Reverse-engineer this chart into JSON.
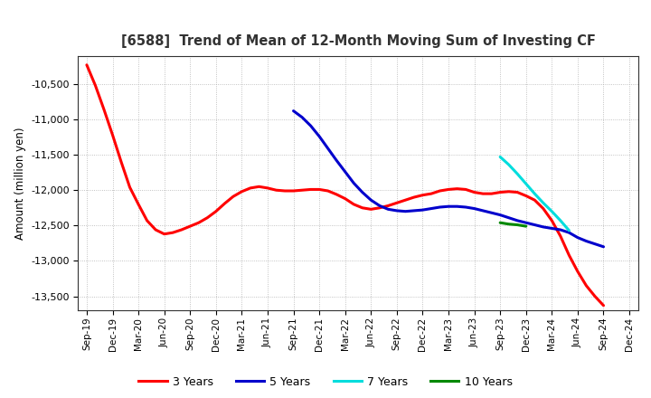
{
  "title": "[6588]  Trend of Mean of 12-Month Moving Sum of Investing CF",
  "ylabel": "Amount (million yen)",
  "background_color": "#ffffff",
  "grid_color": "#aaaaaa",
  "ylim": [
    -13700,
    -10100
  ],
  "yticks": [
    -10500,
    -11000,
    -11500,
    -12000,
    -12500,
    -13000,
    -13500
  ],
  "series": {
    "3 Years": {
      "color": "#ff0000",
      "x": [
        0,
        1,
        2,
        3,
        4,
        5,
        6,
        7,
        8,
        9,
        10,
        11,
        12,
        13,
        14,
        15,
        16,
        17,
        18,
        19,
        20,
        21,
        22,
        23,
        24,
        25,
        26,
        27,
        28,
        29,
        30,
        31,
        32,
        33,
        34,
        35,
        36,
        37,
        38,
        39,
        40,
        41,
        42,
        43,
        44,
        45,
        46,
        47,
        48,
        49,
        50,
        51,
        52,
        53,
        54,
        55,
        56,
        57,
        58,
        59,
        60
      ],
      "y": [
        -10230,
        -10520,
        -10860,
        -11220,
        -11600,
        -11960,
        -12200,
        -12430,
        -12560,
        -12620,
        -12600,
        -12560,
        -12510,
        -12460,
        -12390,
        -12300,
        -12190,
        -12090,
        -12020,
        -11970,
        -11950,
        -11970,
        -12000,
        -12010,
        -12010,
        -12000,
        -11990,
        -11990,
        -12010,
        -12060,
        -12120,
        -12200,
        -12250,
        -12270,
        -12250,
        -12220,
        -12180,
        -12140,
        -12100,
        -12070,
        -12050,
        -12010,
        -11990,
        -11980,
        -11990,
        -12030,
        -12050,
        -12050,
        -12030,
        -12020,
        -12030,
        -12080,
        -12140,
        -12260,
        -12430,
        -12650,
        -12920,
        -13150,
        -13350,
        -13500,
        -13630
      ]
    },
    "5 Years": {
      "color": "#0000cc",
      "x": [
        24,
        25,
        26,
        27,
        28,
        29,
        30,
        31,
        32,
        33,
        34,
        35,
        36,
        37,
        38,
        39,
        40,
        41,
        42,
        43,
        44,
        45,
        46,
        47,
        48,
        49,
        50,
        51,
        52,
        53,
        54,
        55,
        56,
        57,
        58,
        59,
        60
      ],
      "y": [
        -10880,
        -10970,
        -11090,
        -11240,
        -11410,
        -11580,
        -11740,
        -11900,
        -12030,
        -12140,
        -12220,
        -12270,
        -12290,
        -12300,
        -12290,
        -12280,
        -12260,
        -12240,
        -12230,
        -12230,
        -12240,
        -12260,
        -12290,
        -12320,
        -12350,
        -12390,
        -12430,
        -12460,
        -12490,
        -12520,
        -12540,
        -12560,
        -12600,
        -12670,
        -12720,
        -12760,
        -12800
      ]
    },
    "7 Years": {
      "color": "#00dddd",
      "x": [
        48,
        49,
        50,
        51,
        52,
        53,
        54,
        55,
        56
      ],
      "y": [
        -11530,
        -11640,
        -11770,
        -11910,
        -12050,
        -12180,
        -12300,
        -12430,
        -12570
      ]
    },
    "10 Years": {
      "color": "#008800",
      "x": [
        48,
        49,
        50,
        51
      ],
      "y": [
        -12460,
        -12480,
        -12490,
        -12510
      ]
    }
  },
  "xtick_labels": [
    "Sep-19",
    "Dec-19",
    "Mar-20",
    "Jun-20",
    "Sep-20",
    "Dec-20",
    "Mar-21",
    "Jun-21",
    "Sep-21",
    "Dec-21",
    "Mar-22",
    "Jun-22",
    "Sep-22",
    "Dec-22",
    "Mar-23",
    "Jun-23",
    "Sep-23",
    "Dec-23",
    "Mar-24",
    "Jun-24",
    "Sep-24",
    "Dec-24"
  ],
  "xtick_positions": [
    0,
    3,
    6,
    9,
    12,
    15,
    18,
    21,
    24,
    27,
    30,
    33,
    36,
    39,
    42,
    45,
    48,
    51,
    54,
    57,
    60,
    63
  ],
  "legend": [
    {
      "label": "3 Years",
      "color": "#ff0000"
    },
    {
      "label": "5 Years",
      "color": "#0000cc"
    },
    {
      "label": "7 Years",
      "color": "#00dddd"
    },
    {
      "label": "10 Years",
      "color": "#008800"
    }
  ]
}
